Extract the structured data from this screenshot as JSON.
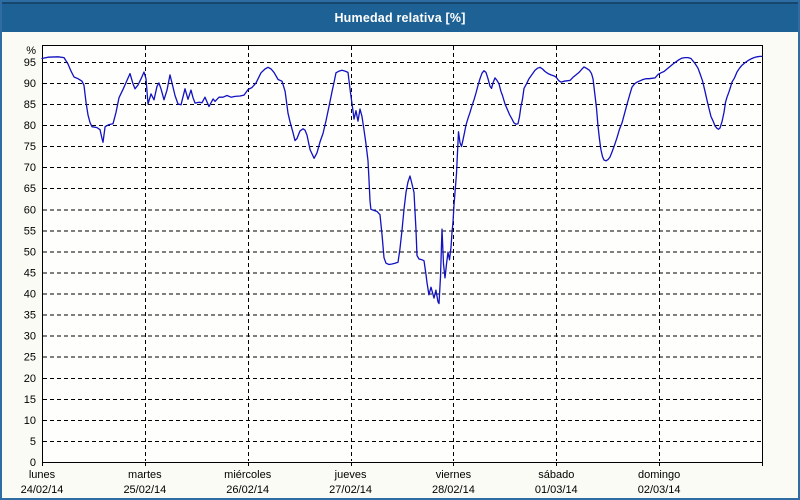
{
  "window": {
    "title": "Humedad relativa [%]"
  },
  "colors": {
    "titlebar_bg": "#1e6295",
    "titlebar_top_edge": "#16486f",
    "outer_border": "#2e6da4",
    "content_bg": "#fbfbf5",
    "plot_bg": "#fefefc",
    "grid": "#000000",
    "axis": "#000000",
    "series_line": "#1212c0",
    "title_text": "#ffffff",
    "label_text": "#000000"
  },
  "chart_data": {
    "type": "line",
    "title": "Humedad relativa [%]",
    "ylabel": "%",
    "xlabel": "",
    "ylim": [
      0,
      99
    ],
    "ytick_step": 5,
    "yticks": [
      0,
      5,
      10,
      15,
      20,
      25,
      30,
      35,
      40,
      45,
      50,
      55,
      60,
      65,
      70,
      75,
      80,
      85,
      90,
      95
    ],
    "grid": "dashed",
    "legend_position": "none",
    "x_axis_days": [
      {
        "name": "lunes",
        "date": "24/02/14"
      },
      {
        "name": "martes",
        "date": "25/02/14"
      },
      {
        "name": "miércoles",
        "date": "26/02/14"
      },
      {
        "name": "jueves",
        "date": "27/02/14"
      },
      {
        "name": "viernes",
        "date": "28/02/14"
      },
      {
        "name": "sábado",
        "date": "01/03/14"
      },
      {
        "name": "domingo",
        "date": "02/03/14"
      }
    ],
    "series": [
      {
        "name": "Humedad relativa",
        "units": "%",
        "x_units": "days_from_start",
        "points": [
          [
            0.0,
            95.8
          ],
          [
            0.058,
            96.1
          ],
          [
            0.156,
            96.2
          ],
          [
            0.214,
            96.0
          ],
          [
            0.253,
            94.5
          ],
          [
            0.282,
            92.8
          ],
          [
            0.311,
            91.4
          ],
          [
            0.35,
            91.0
          ],
          [
            0.389,
            90.4
          ],
          [
            0.408,
            89.4
          ],
          [
            0.428,
            85.4
          ],
          [
            0.447,
            82.4
          ],
          [
            0.467,
            80.6
          ],
          [
            0.486,
            79.6
          ],
          [
            0.535,
            79.4
          ],
          [
            0.564,
            78.9
          ],
          [
            0.583,
            76.8
          ],
          [
            0.593,
            75.9
          ],
          [
            0.613,
            79.6
          ],
          [
            0.651,
            80.1
          ],
          [
            0.69,
            80.3
          ],
          [
            0.719,
            83.0
          ],
          [
            0.749,
            86.5
          ],
          [
            0.788,
            88.5
          ],
          [
            0.826,
            90.6
          ],
          [
            0.856,
            92.2
          ],
          [
            0.885,
            89.8
          ],
          [
            0.904,
            88.6
          ],
          [
            0.933,
            89.5
          ],
          [
            0.963,
            91.0
          ],
          [
            0.992,
            92.6
          ],
          [
            1.011,
            91.0
          ],
          [
            1.031,
            85.0
          ],
          [
            1.06,
            87.4
          ],
          [
            1.089,
            86.0
          ],
          [
            1.118,
            89.2
          ],
          [
            1.137,
            90.0
          ],
          [
            1.157,
            88.6
          ],
          [
            1.186,
            86.0
          ],
          [
            1.215,
            88.3
          ],
          [
            1.244,
            91.9
          ],
          [
            1.274,
            89.0
          ],
          [
            1.293,
            87.0
          ],
          [
            1.322,
            85.0
          ],
          [
            1.351,
            84.8
          ],
          [
            1.39,
            88.6
          ],
          [
            1.419,
            86.1
          ],
          [
            1.449,
            88.3
          ],
          [
            1.468,
            86.5
          ],
          [
            1.488,
            85.2
          ],
          [
            1.526,
            85.4
          ],
          [
            1.556,
            85.3
          ],
          [
            1.585,
            86.6
          ],
          [
            1.624,
            84.4
          ],
          [
            1.663,
            86.2
          ],
          [
            1.682,
            85.6
          ],
          [
            1.721,
            86.6
          ],
          [
            1.76,
            86.6
          ],
          [
            1.799,
            87.0
          ],
          [
            1.838,
            86.6
          ],
          [
            1.876,
            86.8
          ],
          [
            1.925,
            86.9
          ],
          [
            1.964,
            87.1
          ],
          [
            2.003,
            88.4
          ],
          [
            2.042,
            88.9
          ],
          [
            2.081,
            90.0
          ],
          [
            2.129,
            92.4
          ],
          [
            2.168,
            93.3
          ],
          [
            2.197,
            93.7
          ],
          [
            2.227,
            93.3
          ],
          [
            2.256,
            92.5
          ],
          [
            2.295,
            90.8
          ],
          [
            2.333,
            90.4
          ],
          [
            2.363,
            88.0
          ],
          [
            2.392,
            82.8
          ],
          [
            2.411,
            80.8
          ],
          [
            2.44,
            78.2
          ],
          [
            2.46,
            76.3
          ],
          [
            2.479,
            76.8
          ],
          [
            2.508,
            78.6
          ],
          [
            2.538,
            79.1
          ],
          [
            2.557,
            78.8
          ],
          [
            2.576,
            77.6
          ],
          [
            2.606,
            74.2
          ],
          [
            2.645,
            72.1
          ],
          [
            2.674,
            73.4
          ],
          [
            2.703,
            76.0
          ],
          [
            2.732,
            78.0
          ],
          [
            2.761,
            81.0
          ],
          [
            2.79,
            84.4
          ],
          [
            2.82,
            88.0
          ],
          [
            2.839,
            90.1
          ],
          [
            2.858,
            92.4
          ],
          [
            2.888,
            92.8
          ],
          [
            2.917,
            93.0
          ],
          [
            2.946,
            92.8
          ],
          [
            2.975,
            92.5
          ],
          [
            2.994,
            88.6
          ],
          [
            3.004,
            86.8
          ],
          [
            3.023,
            83.5
          ],
          [
            3.033,
            81.4
          ],
          [
            3.053,
            83.4
          ],
          [
            3.072,
            80.9
          ],
          [
            3.092,
            83.8
          ],
          [
            3.111,
            82.0
          ],
          [
            3.13,
            79.0
          ],
          [
            3.15,
            75.5
          ],
          [
            3.169,
            71.5
          ],
          [
            3.179,
            67.0
          ],
          [
            3.189,
            62.0
          ],
          [
            3.198,
            60.0
          ],
          [
            3.228,
            59.7
          ],
          [
            3.257,
            59.5
          ],
          [
            3.286,
            58.7
          ],
          [
            3.306,
            54.0
          ],
          [
            3.325,
            48.5
          ],
          [
            3.344,
            47.2
          ],
          [
            3.374,
            46.9
          ],
          [
            3.403,
            47.0
          ],
          [
            3.432,
            47.2
          ],
          [
            3.461,
            47.4
          ],
          [
            3.48,
            50.5
          ],
          [
            3.5,
            55.0
          ],
          [
            3.519,
            60.0
          ],
          [
            3.539,
            64.0
          ],
          [
            3.558,
            66.5
          ],
          [
            3.578,
            67.9
          ],
          [
            3.597,
            66.0
          ],
          [
            3.617,
            64.0
          ],
          [
            3.636,
            55.0
          ],
          [
            3.646,
            49.0
          ],
          [
            3.665,
            48.2
          ],
          [
            3.694,
            48.0
          ],
          [
            3.714,
            47.8
          ],
          [
            3.733,
            44.5
          ],
          [
            3.743,
            42.6
          ],
          [
            3.762,
            39.7
          ],
          [
            3.782,
            41.5
          ],
          [
            3.811,
            38.9
          ],
          [
            3.83,
            40.8
          ],
          [
            3.85,
            38.0
          ],
          [
            3.86,
            37.6
          ],
          [
            3.874,
            44.0
          ],
          [
            3.889,
            55.3
          ],
          [
            3.903,
            47.0
          ],
          [
            3.918,
            43.7
          ],
          [
            3.933,
            47.0
          ],
          [
            3.947,
            49.8
          ],
          [
            3.962,
            48.0
          ],
          [
            3.976,
            51.0
          ],
          [
            3.986,
            54.5
          ],
          [
            3.996,
            57.0
          ],
          [
            4.006,
            61.0
          ],
          [
            4.015,
            64.0
          ],
          [
            4.03,
            68.5
          ],
          [
            4.04,
            73.5
          ],
          [
            4.049,
            78.4
          ],
          [
            4.064,
            75.8
          ],
          [
            4.078,
            74.9
          ],
          [
            4.093,
            76.5
          ],
          [
            4.108,
            78.2
          ],
          [
            4.122,
            80.0
          ],
          [
            4.142,
            81.6
          ],
          [
            4.161,
            83.0
          ],
          [
            4.18,
            84.5
          ],
          [
            4.2,
            86.0
          ],
          [
            4.219,
            87.6
          ],
          [
            4.239,
            89.4
          ],
          [
            4.258,
            91.0
          ],
          [
            4.278,
            92.3
          ],
          [
            4.297,
            92.9
          ],
          [
            4.317,
            92.5
          ],
          [
            4.336,
            91.0
          ],
          [
            4.356,
            89.2
          ],
          [
            4.37,
            88.7
          ],
          [
            4.385,
            90.0
          ],
          [
            4.404,
            91.2
          ],
          [
            4.424,
            90.6
          ],
          [
            4.443,
            89.8
          ],
          [
            4.462,
            88.0
          ],
          [
            4.477,
            87.0
          ],
          [
            4.501,
            85.0
          ],
          [
            4.521,
            83.9
          ],
          [
            4.545,
            82.5
          ],
          [
            4.569,
            81.4
          ],
          [
            4.589,
            80.5
          ],
          [
            4.608,
            80.2
          ],
          [
            4.628,
            80.3
          ],
          [
            4.642,
            82.0
          ],
          [
            4.657,
            84.5
          ],
          [
            4.671,
            86.0
          ],
          [
            4.686,
            88.7
          ],
          [
            4.71,
            89.8
          ],
          [
            4.735,
            91.0
          ],
          [
            4.764,
            92.0
          ],
          [
            4.793,
            93.0
          ],
          [
            4.817,
            93.5
          ],
          [
            4.842,
            93.7
          ],
          [
            4.866,
            93.3
          ],
          [
            4.89,
            92.7
          ],
          [
            4.92,
            92.2
          ],
          [
            4.949,
            91.9
          ],
          [
            4.973,
            91.7
          ],
          [
            4.997,
            91.4
          ],
          [
            5.022,
            90.6
          ],
          [
            5.046,
            90.2
          ],
          [
            5.075,
            90.4
          ],
          [
            5.104,
            90.5
          ],
          [
            5.133,
            90.6
          ],
          [
            5.162,
            91.3
          ],
          [
            5.192,
            91.9
          ],
          [
            5.221,
            92.5
          ],
          [
            5.25,
            93.3
          ],
          [
            5.269,
            93.8
          ],
          [
            5.298,
            93.4
          ],
          [
            5.323,
            93.0
          ],
          [
            5.342,
            92.2
          ],
          [
            5.357,
            91.0
          ],
          [
            5.376,
            87.0
          ],
          [
            5.391,
            84.0
          ],
          [
            5.405,
            80.0
          ],
          [
            5.42,
            76.6
          ],
          [
            5.434,
            74.2
          ],
          [
            5.449,
            72.5
          ],
          [
            5.464,
            71.7
          ],
          [
            5.483,
            71.5
          ],
          [
            5.503,
            71.8
          ],
          [
            5.522,
            72.4
          ],
          [
            5.542,
            73.6
          ],
          [
            5.566,
            75.2
          ],
          [
            5.59,
            77.0
          ],
          [
            5.615,
            79.0
          ],
          [
            5.639,
            80.5
          ],
          [
            5.663,
            82.7
          ],
          [
            5.688,
            85.0
          ],
          [
            5.712,
            87.0
          ],
          [
            5.736,
            89.0
          ],
          [
            5.761,
            89.8
          ],
          [
            5.785,
            90.2
          ],
          [
            5.814,
            90.5
          ],
          [
            5.843,
            90.8
          ],
          [
            5.872,
            91.0
          ],
          [
            5.902,
            91.0
          ],
          [
            5.931,
            91.1
          ],
          [
            5.96,
            91.2
          ],
          [
            5.989,
            92.0
          ],
          [
            6.018,
            92.4
          ],
          [
            6.047,
            92.7
          ],
          [
            6.076,
            93.3
          ],
          [
            6.106,
            93.9
          ],
          [
            6.135,
            94.5
          ],
          [
            6.164,
            95.0
          ],
          [
            6.193,
            95.5
          ],
          [
            6.222,
            95.9
          ],
          [
            6.251,
            96.0
          ],
          [
            6.281,
            96.0
          ],
          [
            6.31,
            95.8
          ],
          [
            6.329,
            95.2
          ],
          [
            6.349,
            94.6
          ],
          [
            6.378,
            93.5
          ],
          [
            6.397,
            92.2
          ],
          [
            6.422,
            90.5
          ],
          [
            6.446,
            88.0
          ],
          [
            6.465,
            85.9
          ],
          [
            6.485,
            83.9
          ],
          [
            6.504,
            82.0
          ],
          [
            6.524,
            81.0
          ],
          [
            6.543,
            79.8
          ],
          [
            6.563,
            79.2
          ],
          [
            6.577,
            79.0
          ],
          [
            6.592,
            79.3
          ],
          [
            6.611,
            80.8
          ],
          [
            6.631,
            83.0
          ],
          [
            6.645,
            85.4
          ],
          [
            6.66,
            86.6
          ],
          [
            6.679,
            87.9
          ],
          [
            6.694,
            89.0
          ],
          [
            6.708,
            90.2
          ],
          [
            6.733,
            91.2
          ],
          [
            6.757,
            92.6
          ],
          [
            6.781,
            93.5
          ],
          [
            6.806,
            94.2
          ],
          [
            6.835,
            94.8
          ],
          [
            6.864,
            95.3
          ],
          [
            6.893,
            95.7
          ],
          [
            6.922,
            96.0
          ],
          [
            6.951,
            96.2
          ],
          [
            6.981,
            96.3
          ],
          [
            7.0,
            96.3
          ]
        ]
      }
    ]
  }
}
